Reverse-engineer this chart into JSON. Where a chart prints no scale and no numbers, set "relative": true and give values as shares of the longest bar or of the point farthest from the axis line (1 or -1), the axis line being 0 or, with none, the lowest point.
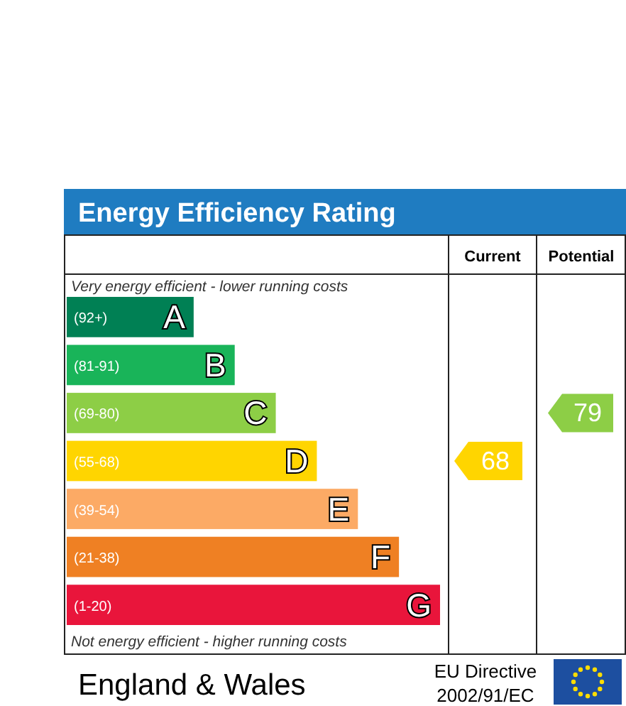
{
  "chart_data": {
    "type": "bar",
    "orientation": "horizontal",
    "relative": true,
    "title": "Energy Efficiency Rating",
    "categories": [
      "A",
      "B",
      "C",
      "D",
      "E",
      "F",
      "G"
    ],
    "values": [
      0.34,
      0.45,
      0.56,
      0.67,
      0.78,
      0.89,
      1
    ],
    "colors": [
      "#008054",
      "#19b459",
      "#8dce46",
      "#ffd500",
      "#fcaa65",
      "#ef8023",
      "#e9153b"
    ],
    "annotations": [
      "Very energy efficient - lower running costs",
      "Not energy efficient - higher running costs",
      "Current",
      "Potential",
      "England & Wales",
      "EU Directive",
      "2002/91/EC",
      "(92+)",
      "(81-91)",
      "(69-80)",
      "(55-68)",
      "(39-54)",
      "(21-38)",
      "(1-20)",
      "68",
      "79"
    ]
  }
}
